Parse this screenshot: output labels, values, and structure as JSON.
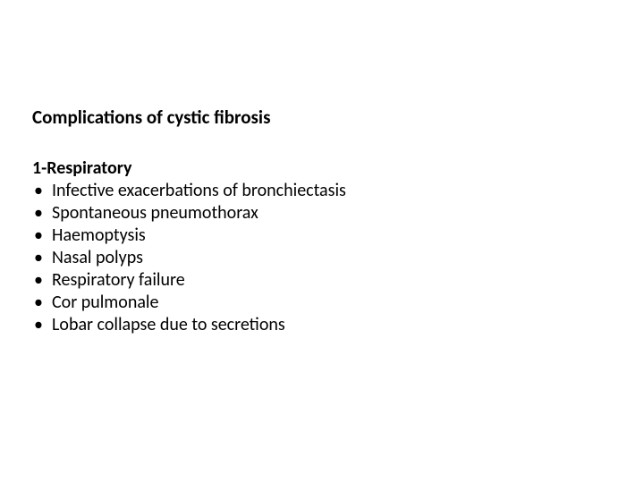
{
  "title": "Complications of cystic fibrosis",
  "section": {
    "heading": "1-Respiratory",
    "items": [
      "Infective exacerbations of bronchiectasis",
      "Spontaneous pneumothorax",
      "Haemoptysis",
      "Nasal polyps",
      "Respiratory failure",
      "Cor pulmonale",
      "Lobar collapse due to secretions"
    ]
  },
  "colors": {
    "background": "#ffffff",
    "text": "#000000"
  },
  "typography": {
    "font_family": "Calibri",
    "title_size_pt": 16,
    "body_size_pt": 15,
    "title_weight": 700,
    "subheading_weight": 700
  }
}
